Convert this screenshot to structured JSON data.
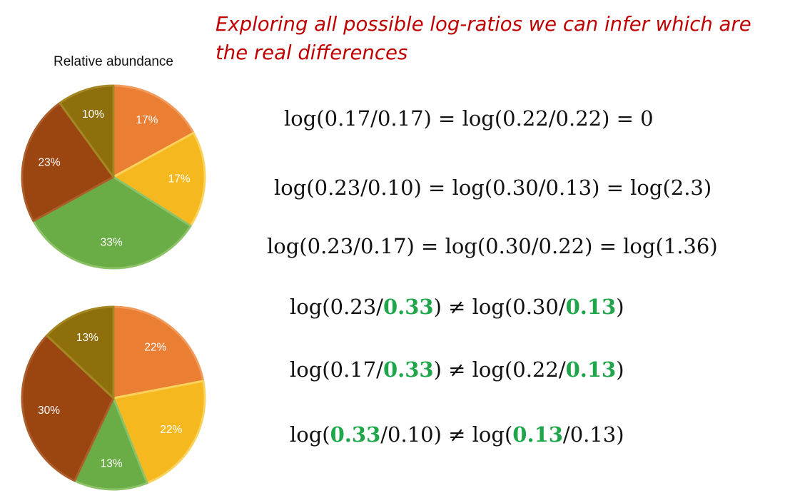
{
  "heading": "Exploring all possible log-ratios we can infer which are the real differences",
  "chart_data": [
    {
      "type": "pie",
      "title": "Relative abundance",
      "categories": [
        "17%",
        "17%",
        "33%",
        "23%",
        "10%"
      ],
      "values": [
        17,
        17,
        33,
        23,
        10
      ],
      "colors": [
        "#ea7e33",
        "#f5b81f",
        "#6aac45",
        "#9b4610",
        "#8e6f0b"
      ],
      "edge_colors": [
        "#f09a5b",
        "#f9d25c",
        "#8cc267",
        "#ab5e2b",
        "#a48723"
      ]
    },
    {
      "type": "pie",
      "title": "",
      "categories": [
        "22%",
        "22%",
        "13%",
        "30%",
        "13%"
      ],
      "values": [
        22,
        22,
        13,
        30,
        13
      ],
      "colors": [
        "#ea7e33",
        "#f5b81f",
        "#6aac45",
        "#9b4610",
        "#8e6f0b"
      ],
      "edge_colors": [
        "#f09a5b",
        "#f9d25c",
        "#8cc267",
        "#ab5e2b",
        "#a48723"
      ]
    }
  ],
  "equations": [
    {
      "parts": [
        {
          "t": "log(0.17/0.17) = log(0.22/0.22) = 0"
        }
      ]
    },
    {
      "parts": [
        {
          "t": "log(0.23/0.10) = log(0.30/0.13) = log(2.3)"
        }
      ]
    },
    {
      "parts": [
        {
          "t": "log(0.23/0.17) = log(0.30/0.22) = log(1.36)"
        }
      ]
    },
    {
      "parts": [
        {
          "t": "log(0.23/"
        },
        {
          "t": "0.33",
          "hl": true
        },
        {
          "t": ") ≠ log(0.30/"
        },
        {
          "t": "0.13",
          "hl": true
        },
        {
          "t": ")"
        }
      ]
    },
    {
      "parts": [
        {
          "t": "log(0.17/"
        },
        {
          "t": "0.33",
          "hl": true
        },
        {
          "t": ") ≠ log(0.22/"
        },
        {
          "t": "0.13",
          "hl": true
        },
        {
          "t": ")"
        }
      ]
    },
    {
      "parts": [
        {
          "t": "log("
        },
        {
          "t": "0.33",
          "hl": true
        },
        {
          "t": "/0.10) ≠ log("
        },
        {
          "t": "0.13",
          "hl": true
        },
        {
          "t": "/0.13)"
        }
      ]
    }
  ]
}
